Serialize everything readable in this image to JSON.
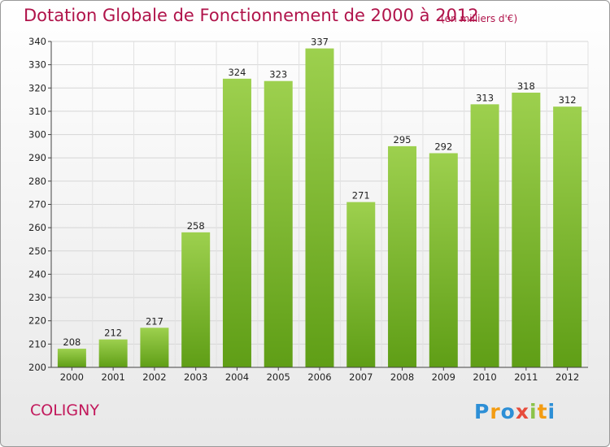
{
  "header": {
    "title": "Dotation Globale de Fonctionnement de 2000 à 2012",
    "subtitle": "(en milliers d'€)"
  },
  "footer": {
    "commune": "COLIGNY",
    "logo": "Proxiti"
  },
  "colors": {
    "title": "#b0134a",
    "bar_top": "#9dd04e",
    "bar_bottom": "#5f9e16",
    "logo": [
      "#2d8fd6",
      "#f39c12",
      "#2d8fd6",
      "#e74c3c",
      "#8bc34a",
      "#f39c12",
      "#2d8fd6"
    ]
  },
  "chart_data": {
    "type": "bar",
    "title": "Dotation Globale de Fonctionnement de 2000 à 2012",
    "subtitle": "(en milliers d'€)",
    "categories": [
      "2000",
      "2001",
      "2002",
      "2003",
      "2004",
      "2005",
      "2006",
      "2007",
      "2008",
      "2009",
      "2010",
      "2011",
      "2012"
    ],
    "values": [
      208,
      212,
      217,
      258,
      324,
      323,
      337,
      271,
      295,
      292,
      313,
      318,
      312
    ],
    "ylim": [
      200,
      340
    ],
    "yticks": [
      200,
      210,
      220,
      230,
      240,
      250,
      260,
      270,
      280,
      290,
      300,
      310,
      320,
      330,
      340
    ],
    "grid": true,
    "legend": "none"
  }
}
